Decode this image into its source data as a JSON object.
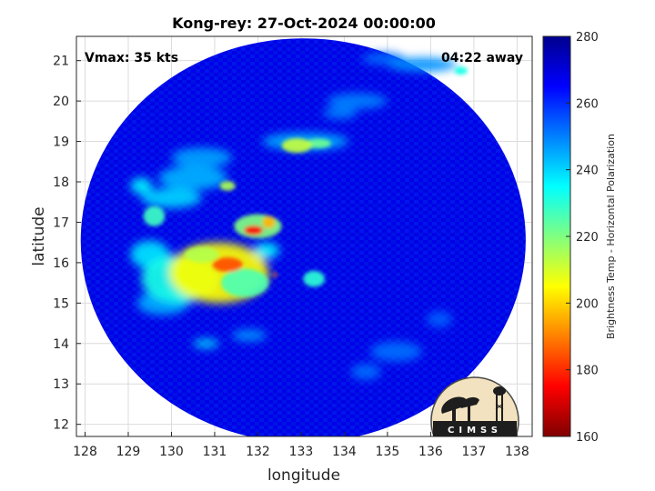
{
  "chart_data": {
    "type": "heatmap",
    "title": "Kong-rey: 27-Oct-2024 00:00:00",
    "xlabel": "longitude",
    "ylabel": "latitude",
    "x_ticks": [
      "128",
      "129",
      "130",
      "131",
      "132",
      "133",
      "134",
      "135",
      "136",
      "137",
      "138"
    ],
    "y_ticks": [
      "12",
      "13",
      "14",
      "15",
      "16",
      "17",
      "18",
      "19",
      "20",
      "21"
    ],
    "xlim": [
      127.8,
      138.35
    ],
    "ylim": [
      11.7,
      21.6
    ],
    "grid": true,
    "annotations": {
      "vmax": "Vmax: 35 kts",
      "time_away": "04:22 away"
    },
    "colorbar": {
      "label": "Brightness Temp - Horizontal Polarization",
      "ticks": [
        "160",
        "180",
        "200",
        "220",
        "240",
        "260",
        "280"
      ],
      "range": [
        160,
        280
      ],
      "colormap": [
        "#7f0000",
        "#ff0000",
        "#ff8000",
        "#ffff00",
        "#80ff80",
        "#00ffff",
        "#0080ff",
        "#0000ff",
        "#00008f"
      ]
    },
    "swath": {
      "center": [
        133.05,
        16.55
      ],
      "radius_lon": 5.15,
      "radius_lat": 5.0,
      "background_value": 268
    },
    "features": [
      {
        "lon": 131.1,
        "lat": 15.75,
        "value": 205,
        "r_lon": 1.15,
        "r_lat": 0.75
      },
      {
        "lon": 130.2,
        "lat": 15.6,
        "value": 232,
        "r_lon": 0.9,
        "r_lat": 0.6
      },
      {
        "lon": 131.7,
        "lat": 15.5,
        "value": 226,
        "r_lon": 0.55,
        "r_lat": 0.35
      },
      {
        "lon": 131.3,
        "lat": 15.95,
        "value": 184,
        "r_lon": 0.35,
        "r_lat": 0.18
      },
      {
        "lon": 130.7,
        "lat": 16.2,
        "value": 214,
        "r_lon": 0.4,
        "r_lat": 0.2
      },
      {
        "lon": 132.0,
        "lat": 16.9,
        "value": 220,
        "r_lon": 0.55,
        "r_lat": 0.3
      },
      {
        "lon": 131.9,
        "lat": 16.8,
        "value": 176,
        "r_lon": 0.22,
        "r_lat": 0.12
      },
      {
        "lon": 132.25,
        "lat": 17.0,
        "value": 196,
        "r_lon": 0.15,
        "r_lat": 0.15
      },
      {
        "lon": 132.9,
        "lat": 18.9,
        "value": 212,
        "r_lon": 0.35,
        "r_lat": 0.18
      },
      {
        "lon": 133.4,
        "lat": 18.95,
        "value": 222,
        "r_lon": 0.3,
        "r_lat": 0.12
      },
      {
        "lon": 133.1,
        "lat": 19.0,
        "value": 245,
        "r_lon": 1.0,
        "r_lat": 0.22
      },
      {
        "lon": 131.3,
        "lat": 17.9,
        "value": 215,
        "r_lon": 0.18,
        "r_lat": 0.12
      },
      {
        "lon": 129.6,
        "lat": 17.15,
        "value": 228,
        "r_lon": 0.25,
        "r_lat": 0.25
      },
      {
        "lon": 130.0,
        "lat": 17.6,
        "value": 240,
        "r_lon": 0.7,
        "r_lat": 0.25
      },
      {
        "lon": 130.5,
        "lat": 18.1,
        "value": 244,
        "r_lon": 0.8,
        "r_lat": 0.3
      },
      {
        "lon": 130.7,
        "lat": 18.6,
        "value": 246,
        "r_lon": 0.7,
        "r_lat": 0.25
      },
      {
        "lon": 129.3,
        "lat": 17.9,
        "value": 236,
        "r_lon": 0.25,
        "r_lat": 0.2
      },
      {
        "lon": 133.3,
        "lat": 15.6,
        "value": 230,
        "r_lon": 0.25,
        "r_lat": 0.2
      },
      {
        "lon": 132.2,
        "lat": 16.3,
        "value": 236,
        "r_lon": 0.3,
        "r_lat": 0.2
      },
      {
        "lon": 132.4,
        "lat": 15.7,
        "value": 190,
        "r_lon": 0.05,
        "r_lat": 0.05
      },
      {
        "lon": 130.8,
        "lat": 14.0,
        "value": 240,
        "r_lon": 0.3,
        "r_lat": 0.12
      },
      {
        "lon": 131.8,
        "lat": 14.2,
        "value": 248,
        "r_lon": 0.4,
        "r_lat": 0.15
      },
      {
        "lon": 129.8,
        "lat": 15.0,
        "value": 245,
        "r_lon": 0.6,
        "r_lat": 0.3
      },
      {
        "lon": 136.7,
        "lat": 20.75,
        "value": 232,
        "r_lon": 0.15,
        "r_lat": 0.1
      },
      {
        "lon": 135.8,
        "lat": 20.9,
        "value": 248,
        "r_lon": 0.8,
        "r_lat": 0.18
      },
      {
        "lon": 134.3,
        "lat": 20.0,
        "value": 250,
        "r_lon": 0.7,
        "r_lat": 0.2
      },
      {
        "lon": 134.9,
        "lat": 21.05,
        "value": 252,
        "r_lon": 0.5,
        "r_lat": 0.15
      },
      {
        "lon": 133.9,
        "lat": 19.7,
        "value": 250,
        "r_lon": 0.4,
        "r_lat": 0.15
      },
      {
        "lon": 135.2,
        "lat": 13.8,
        "value": 252,
        "r_lon": 0.6,
        "r_lat": 0.25
      },
      {
        "lon": 134.5,
        "lat": 13.3,
        "value": 252,
        "r_lon": 0.35,
        "r_lat": 0.2
      },
      {
        "lon": 136.2,
        "lat": 14.6,
        "value": 254,
        "r_lon": 0.3,
        "r_lat": 0.2
      },
      {
        "lon": 129.5,
        "lat": 16.2,
        "value": 238,
        "r_lon": 0.45,
        "r_lat": 0.35
      }
    ]
  },
  "logo": {
    "text": "CIMSS"
  }
}
